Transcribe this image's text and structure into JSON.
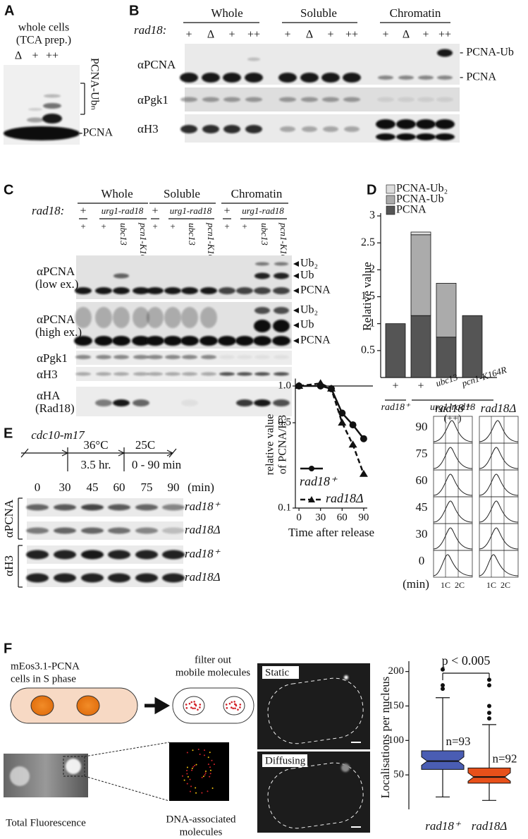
{
  "panels": {
    "A": {
      "letter": "A",
      "title": [
        "whole cells",
        "(TCA prep.)"
      ],
      "lanes": [
        "Δ",
        "+",
        "++"
      ],
      "bracket_label": "PCNA-Ubₙ",
      "band_label": "-PCNA"
    },
    "B": {
      "letter": "B",
      "groups": [
        "Whole",
        "Soluble",
        "Chromatin"
      ],
      "genotype": "rad18:",
      "lanes": [
        "+",
        "Δ",
        "+",
        "++"
      ],
      "rows": [
        "αPCNA",
        "αPgk1",
        "αH3"
      ],
      "band_labels": [
        "- PCNA-Ub",
        "- PCNA"
      ]
    },
    "C": {
      "letter": "C",
      "groups": [
        "Whole",
        "Soluble",
        "Chromatin"
      ],
      "genotype": "rad18:",
      "subgroups": [
        "+",
        "urg1-rad18"
      ],
      "lanes": [
        "+",
        "+",
        "ubc13",
        "pcn1-K164R"
      ],
      "rows": [
        [
          "αPCNA",
          "(low ex.)"
        ],
        [
          "αPCNA",
          "(high ex.)"
        ],
        [
          "αPgk1"
        ],
        [
          "αH3"
        ],
        [
          "αHA",
          "(Rad18)"
        ]
      ],
      "band_labels": [
        "Ub₂",
        "Ub",
        "PCNA"
      ]
    },
    "D": {
      "letter": "D"
    },
    "E": {
      "letter": "E",
      "strain": "cdc10-m17",
      "temps": [
        "36°C",
        "25C"
      ],
      "durations": [
        "3.5 hr.",
        "0 - 90 min"
      ],
      "times": [
        "0",
        "30",
        "45",
        "60",
        "75",
        "90"
      ],
      "time_unit": "(min)",
      "blot_rows": [
        "rad18⁺",
        "rad18Δ",
        "rad18⁺",
        "rad18Δ"
      ],
      "antibodies": [
        "αPCNA",
        "αH3"
      ],
      "facs_columns": [
        "rad18⁺",
        "rad18Δ"
      ],
      "facs_times": [
        "90",
        "75",
        "60",
        "45",
        "30",
        "0"
      ],
      "facs_unit": "(min)",
      "facs_x": [
        "1C",
        "2C"
      ]
    },
    "F": {
      "letter": "F",
      "cells_label": [
        "mEos3.1-PCNA",
        "cells in S phase"
      ],
      "filter_label": [
        "filter out",
        "mobile molecules"
      ],
      "total_label": "Total Fluorescence",
      "dna_label": [
        "DNA-associated",
        "molecules"
      ],
      "image_labels": [
        "Static",
        "Diffusing"
      ]
    }
  },
  "chart_data": [
    {
      "type": "stacked-bar",
      "ylabel": "Relative value",
      "categories": [
        "+",
        "+",
        "ubc13",
        "pcn1-K164R"
      ],
      "group_labels": [
        "rad18⁺",
        "urg1-rad18",
        "(++)"
      ],
      "series": [
        {
          "name": "PCNA",
          "color": "#555555",
          "values": [
            1,
            1.15,
            0.75,
            1.15
          ]
        },
        {
          "name": "PCNA-Ub",
          "color": "#ababab",
          "values": [
            0,
            1.5,
            1.0,
            0
          ]
        },
        {
          "name": "PCNA-Ub₂",
          "color": "#dedede",
          "values": [
            0,
            0.05,
            0,
            0
          ]
        }
      ],
      "ylim": [
        0,
        3
      ],
      "yticks": [
        0.5,
        1,
        1.5,
        2,
        2.5,
        3
      ]
    },
    {
      "type": "line",
      "ylabel": [
        "relative value",
        "of PCNA/H3"
      ],
      "xlabel": "Time after release",
      "log_y": true,
      "refline": 1,
      "x": [
        0,
        30,
        45,
        60,
        75,
        90
      ],
      "series": [
        {
          "name": "rad18⁺",
          "color": "#111111",
          "dashed": false,
          "marker": "circle",
          "values": [
            1,
            1,
            0.95,
            0.6,
            0.48,
            0.37
          ]
        },
        {
          "name": "rad18Δ",
          "color": "#111111",
          "dashed": true,
          "marker": "triangle",
          "values": [
            1,
            1.05,
            0.95,
            0.5,
            0.33,
            0.19
          ]
        }
      ],
      "xlim": [
        -5,
        95
      ],
      "xticks": [
        0,
        30,
        60,
        90
      ],
      "ylim": [
        0.1,
        1.15
      ],
      "yticks": [
        0.1,
        0.5,
        {
          "value": 1,
          "label": "1.0"
        }
      ]
    },
    {
      "type": "box",
      "ylabel": "Localisations per nucleus",
      "categories": [
        "rad18⁺",
        "rad18Δ"
      ],
      "annotation": "p < 0.005",
      "boxes": [
        {
          "whisker_low": 18,
          "q1": 58,
          "median": 70,
          "q3": 85,
          "whisker_high": 162,
          "outliers": [
            175,
            180,
            203
          ],
          "color": "#4a5db3",
          "n_label": "n=93"
        },
        {
          "whisker_low": 13,
          "q1": 38,
          "median": 47,
          "q3": 60,
          "whisker_high": 123,
          "outliers": [
            132,
            140,
            150,
            180,
            188
          ],
          "color": "#e8501a",
          "n_label": "n=92"
        }
      ],
      "ylim": [
        0,
        215
      ],
      "yticks": [
        50,
        100,
        150,
        200
      ]
    }
  ]
}
